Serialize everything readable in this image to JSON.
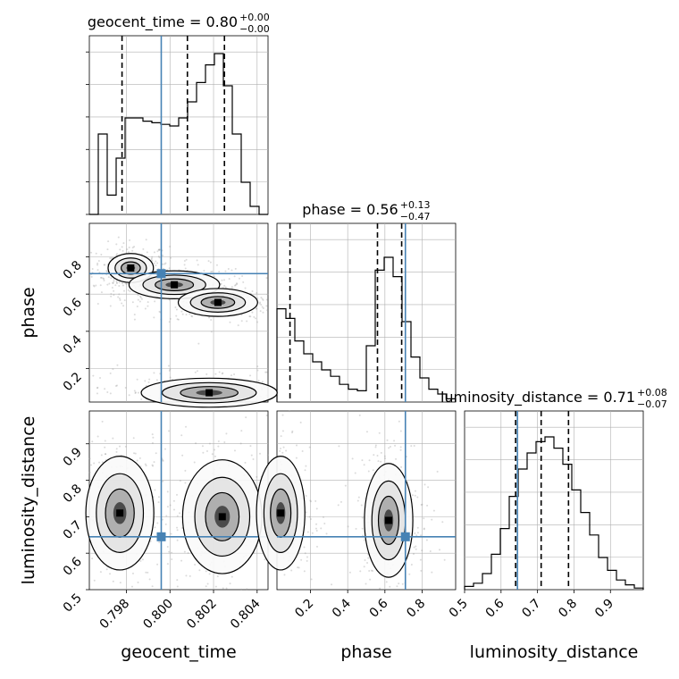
{
  "chart_data": {
    "type": "corner",
    "parameters": [
      "geocent_time",
      "phase",
      "luminosity_distance"
    ],
    "injection": {
      "geocent_time": 0.7996,
      "phase": 0.71,
      "luminosity_distance": 0.645
    },
    "ranges": {
      "geocent_time": [
        0.7963,
        0.8045
      ],
      "phase": [
        0.02,
        0.98
      ],
      "luminosity_distance": [
        0.5,
        0.99
      ]
    },
    "ticks": {
      "geocent_time": [
        "0.798",
        "0.800",
        "0.802",
        "0.804"
      ],
      "phase": [
        "0.2",
        "0.4",
        "0.6",
        "0.8"
      ],
      "luminosity_distance": [
        "0.5",
        "0.6",
        "0.7",
        "0.8",
        "0.9"
      ]
    },
    "tick_values": {
      "geocent_time": [
        0.798,
        0.8,
        0.802,
        0.804
      ],
      "phase": [
        0.2,
        0.4,
        0.6,
        0.8
      ],
      "luminosity_distance": [
        0.5,
        0.6,
        0.7,
        0.8,
        0.9
      ]
    },
    "titles": {
      "geocent_time": {
        "main": "geocent_time = 0.80",
        "up": "+0.00",
        "down": "−0.00"
      },
      "phase": {
        "main": "phase = 0.56",
        "up": "+0.13",
        "down": "−0.47"
      },
      "luminosity_distance": {
        "main": "luminosity_distance = 0.71",
        "up": "+0.08",
        "down": "−0.07"
      }
    },
    "quantiles": {
      "geocent_time": [
        0.7978,
        0.8008,
        0.8025
      ],
      "phase": [
        0.09,
        0.56,
        0.69
      ],
      "luminosity_distance": [
        0.64,
        0.71,
        0.785
      ]
    },
    "histograms": {
      "geocent_time": {
        "edges_start": 0.7963,
        "bin_width": 0.00041,
        "counts": [
          0,
          0.5,
          0.12,
          0.35,
          0.6,
          0.6,
          0.58,
          0.57,
          0.56,
          0.55,
          0.6,
          0.7,
          0.82,
          0.93,
          1.0,
          0.8,
          0.5,
          0.2,
          0.05,
          0
        ]
      },
      "phase": {
        "edges_start": 0.02,
        "bin_width": 0.048,
        "counts": [
          0.58,
          0.52,
          0.38,
          0.3,
          0.25,
          0.2,
          0.16,
          0.11,
          0.08,
          0.07,
          0.35,
          0.82,
          0.9,
          0.78,
          0.5,
          0.28,
          0.15,
          0.08,
          0.05,
          0.02
        ]
      },
      "luminosity_distance": {
        "edges_start": 0.5,
        "bin_width": 0.0245,
        "counts": [
          0.02,
          0.04,
          0.1,
          0.22,
          0.38,
          0.58,
          0.75,
          0.85,
          0.92,
          0.95,
          0.88,
          0.78,
          0.62,
          0.48,
          0.34,
          0.2,
          0.12,
          0.06,
          0.03,
          0.01
        ]
      }
    },
    "density_modes": [
      {
        "pair": "phase|geocent_time",
        "blobs": [
          [
            0.7982,
            0.74,
            0.0004,
            0.03
          ],
          [
            0.8002,
            0.65,
            0.0008,
            0.025
          ],
          [
            0.8022,
            0.555,
            0.0007,
            0.025
          ],
          [
            0.8018,
            0.07,
            0.0012,
            0.03
          ]
        ]
      },
      {
        "pair": "luminosity_distance|geocent_time",
        "blobs": [
          [
            0.7977,
            0.71,
            0.0006,
            0.06
          ],
          [
            0.8024,
            0.7,
            0.0007,
            0.06
          ]
        ]
      },
      {
        "pair": "luminosity_distance|phase",
        "blobs": [
          [
            0.04,
            0.71,
            0.05,
            0.06
          ],
          [
            0.62,
            0.69,
            0.05,
            0.06
          ]
        ]
      }
    ],
    "grid": true,
    "colors": {
      "injection": "#4682b4",
      "contour": "#000000",
      "hist": "#000000",
      "points": "#999999"
    }
  }
}
